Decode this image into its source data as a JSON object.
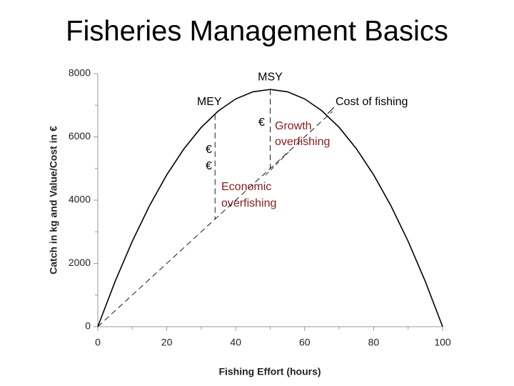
{
  "title": "Fisheries Management Basics",
  "chart_data": {
    "type": "line",
    "x_label": "Fishing Effort (hours)",
    "y_label": "Catch in kg and Value/Cost in €",
    "xlim": [
      0,
      100
    ],
    "xticks": [
      0,
      20,
      40,
      60,
      80,
      100
    ],
    "xminorticks": [
      10,
      30,
      50,
      70,
      90
    ],
    "ylim": [
      0,
      8000
    ],
    "yticks": [
      0,
      2000,
      4000,
      6000,
      8000
    ],
    "yminorticks": [
      1000,
      3000,
      5000,
      7000
    ],
    "series": [
      {
        "color": "#000000",
        "dashed": false,
        "x": [
          0,
          5,
          10,
          15,
          20,
          25,
          30,
          35,
          40,
          45,
          50,
          55,
          60,
          65,
          70,
          75,
          80,
          85,
          90,
          95,
          100
        ],
        "values": [
          0,
          1425,
          2700,
          3825,
          4800,
          5625,
          6300,
          6825,
          7200,
          7425,
          7500,
          7425,
          7200,
          6825,
          6300,
          5625,
          4800,
          3825,
          2700,
          1425,
          0
        ]
      },
      {
        "color": "#000000",
        "dashed": true,
        "x": [
          0,
          68
        ],
        "values": [
          0,
          6800
        ]
      }
    ],
    "reference_lines": [
      {
        "label": "MSY",
        "x": 50
      },
      {
        "label": "MEY",
        "x": 34
      }
    ],
    "annotations": {
      "cost": "Cost of fishing",
      "euro": "€",
      "growth": [
        "Growth",
        "overfishing"
      ],
      "economic": [
        "Economic",
        "overfishing"
      ]
    }
  }
}
